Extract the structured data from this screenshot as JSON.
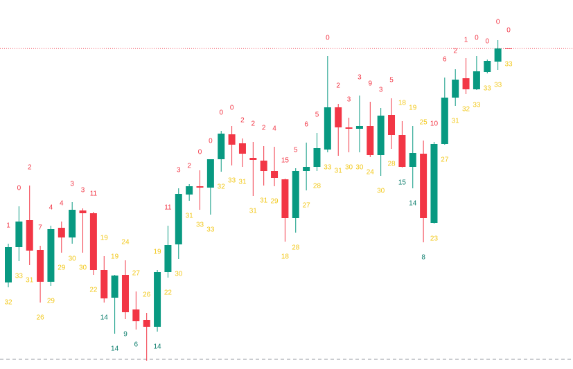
{
  "chart_data": {
    "type": "candlestick",
    "ylim": [
      0,
      533
    ],
    "up_color": "#089981",
    "down_color": "#f23645",
    "open": [
      125,
      176,
      215,
      172,
      126,
      204,
      190,
      229,
      225,
      143,
      103,
      136,
      86,
      71,
      61,
      140,
      180,
      252,
      264,
      262,
      303,
      339,
      326,
      305,
      301,
      286,
      274,
      218,
      286,
      292,
      317,
      378,
      349,
      347,
      351,
      309,
      367,
      338,
      292,
      311,
      211,
      325,
      392,
      420,
      404,
      429,
      444,
      463
    ],
    "high": [
      181,
      235,
      265,
      178,
      207,
      213,
      241,
      232,
      227,
      163,
      136,
      157,
      112,
      81,
      143,
      207,
      261,
      267,
      287,
      303,
      344,
      351,
      333,
      328,
      322,
      321,
      275,
      290,
      327,
      341,
      452,
      383,
      363,
      395,
      386,
      377,
      391,
      358,
      351,
      330,
      328,
      421,
      433,
      449,
      452,
      447,
      475,
      463
    ],
    "low": [
      118,
      156,
      150,
      96,
      120,
      168,
      181,
      168,
      136,
      96,
      51,
      72,
      57,
      12,
      54,
      132,
      159,
      243,
      230,
      223,
      285,
      294,
      292,
      250,
      265,
      264,
      184,
      197,
      258,
      286,
      313,
      308,
      313,
      313,
      306,
      279,
      318,
      291,
      261,
      183,
      210,
      324,
      380,
      397,
      403,
      427,
      432,
      462
    ],
    "close": [
      176,
      213,
      171,
      126,
      202,
      190,
      230,
      225,
      143,
      102,
      135,
      82,
      69,
      61,
      140,
      179,
      253,
      264,
      262,
      303,
      340,
      324,
      311,
      302,
      286,
      276,
      218,
      286,
      292,
      319,
      378,
      349,
      347,
      351,
      309,
      366,
      338,
      292,
      312,
      218,
      325,
      392,
      418,
      404,
      430,
      445,
      463,
      462
    ],
    "upper_labels": [
      1,
      0,
      2,
      7,
      4,
      4,
      3,
      3,
      11,
      19,
      19,
      24,
      27,
      26,
      19,
      11,
      3,
      2,
      0,
      0,
      0,
      0,
      2,
      2,
      2,
      4,
      15,
      5,
      6,
      5,
      0,
      2,
      3,
      3,
      9,
      3,
      5,
      18,
      19,
      25,
      10,
      6,
      2,
      1,
      0,
      0,
      0,
      0
    ],
    "upper_colors": [
      "#f23645",
      "#f23645",
      "#f23645",
      "#f23645",
      "#f23645",
      "#f23645",
      "#f23645",
      "#f23645",
      "#f23645",
      "#f2c81a",
      "#f2c81a",
      "#f2c81a",
      "#f2c81a",
      "#f2c81a",
      "#f2c81a",
      "#f23645",
      "#f23645",
      "#f23645",
      "#f23645",
      "#f23645",
      "#f23645",
      "#f23645",
      "#f23645",
      "#f23645",
      "#f23645",
      "#f23645",
      "#f23645",
      "#f23645",
      "#f23645",
      "#f23645",
      "#f23645",
      "#f23645",
      "#f23645",
      "#f23645",
      "#f23645",
      "#f23645",
      "#f23645",
      "#f2c81a",
      "#f2c81a",
      "#f2c81a",
      "#f23645",
      "#f23645",
      "#f23645",
      "#f23645",
      "#f23645",
      "#f23645",
      "#f23645",
      "#f23645"
    ],
    "lower_labels": [
      32,
      33,
      31,
      26,
      29,
      29,
      30,
      30,
      22,
      14,
      14,
      9,
      6,
      null,
      14,
      22,
      30,
      31,
      33,
      33,
      32,
      33,
      31,
      31,
      31,
      29,
      18,
      28,
      27,
      28,
      33,
      31,
      30,
      30,
      24,
      30,
      28,
      15,
      14,
      8,
      23,
      27,
      31,
      32,
      33,
      33,
      33,
      33
    ],
    "lower_colors": [
      "#f2c81a",
      "#f2c81a",
      "#f2c81a",
      "#f2c81a",
      "#f2c81a",
      "#f2c81a",
      "#f2c81a",
      "#f2c81a",
      "#f2c81a",
      "#0b7d6c",
      "#0b7d6c",
      "#0b7d6c",
      "#0b7d6c",
      null,
      "#0b7d6c",
      "#f2c81a",
      "#f2c81a",
      "#f2c81a",
      "#f2c81a",
      "#f2c81a",
      "#f2c81a",
      "#f2c81a",
      "#f2c81a",
      "#f2c81a",
      "#f2c81a",
      "#f2c81a",
      "#f2c81a",
      "#f2c81a",
      "#f2c81a",
      "#f2c81a",
      "#f2c81a",
      "#f2c81a",
      "#f2c81a",
      "#f2c81a",
      "#f2c81a",
      "#f2c81a",
      "#f2c81a",
      "#0b7d6c",
      "#0b7d6c",
      "#0b7d6c",
      "#f2c81a",
      "#f2c81a",
      "#f2c81a",
      "#f2c81a",
      "#f2c81a",
      "#f2c81a",
      "#f2c81a",
      "#f2c81a"
    ],
    "levels": [
      {
        "value": 463,
        "color": "#f23645",
        "style": "dotted"
      },
      {
        "value": 14,
        "color": "#9598a1",
        "style": "dashed"
      }
    ]
  }
}
